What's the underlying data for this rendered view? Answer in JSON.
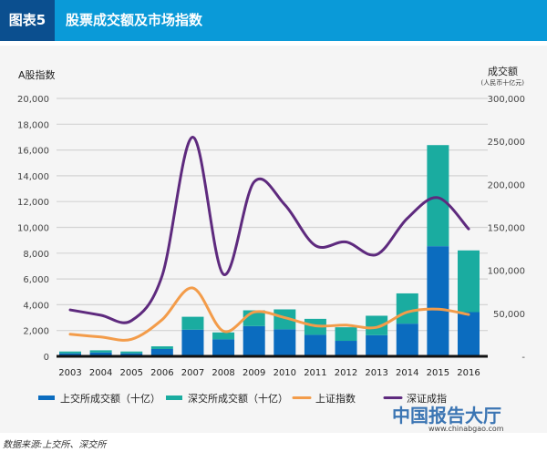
{
  "header": {
    "number": "图表5",
    "title": "股票成交额及市场指数"
  },
  "source": "数据来源:上交所、深交所",
  "watermark": {
    "name": "中国报告大厅",
    "url": "www.chinabgao.com"
  },
  "chart_data": {
    "type": "bar+line",
    "title": "股票成交额及市场指数",
    "ylabel_left": "A股指数",
    "ylabel_right": "成交额",
    "ylabel_right_unit": "(人民币十亿元)",
    "ylim_left": [
      0,
      20000
    ],
    "ylim_right": [
      0,
      300000
    ],
    "left_ticks": [
      "0",
      "2,000",
      "4,000",
      "6,000",
      "8,000",
      "10,000",
      "12,000",
      "14,000",
      "16,000",
      "18,000",
      "20,000"
    ],
    "right_ticks": [
      "-",
      "50,000",
      "100,000",
      "150,000",
      "200,000",
      "250,000",
      "300,000"
    ],
    "grid": true,
    "legend_position": "bottom",
    "categories": [
      "2003",
      "2004",
      "2005",
      "2006",
      "2007",
      "2008",
      "2009",
      "2010",
      "2011",
      "2012",
      "2013",
      "2014",
      "2015",
      "2016"
    ],
    "bar_series": [
      {
        "name": "上交所成交额（十亿）",
        "axis": "right",
        "color": "#0b6cbf",
        "values": [
          3500,
          4500,
          3500,
          8500,
          31000,
          19700,
          35200,
          31400,
          25000,
          18000,
          24600,
          38000,
          128100,
          51400
        ]
      },
      {
        "name": "深交所成交额（十亿）",
        "axis": "right",
        "color": "#1aaca0",
        "values": [
          2100,
          2500,
          2100,
          3100,
          15000,
          8100,
          18300,
          23200,
          18600,
          15800,
          22600,
          35200,
          117600,
          71800
        ]
      }
    ],
    "line_series": [
      {
        "name": "上证指数",
        "axis": "left",
        "color": "#f39c4a",
        "values": [
          1710,
          1500,
          1320,
          2840,
          5300,
          1950,
          3430,
          3000,
          2370,
          2420,
          2250,
          3430,
          3660,
          3240
        ]
      },
      {
        "name": "深证成指",
        "axis": "left",
        "color": "#5e2a7e",
        "values": [
          3600,
          3190,
          2770,
          6250,
          17000,
          6360,
          13520,
          11760,
          8590,
          8870,
          7890,
          10700,
          12300,
          9880
        ]
      }
    ]
  }
}
